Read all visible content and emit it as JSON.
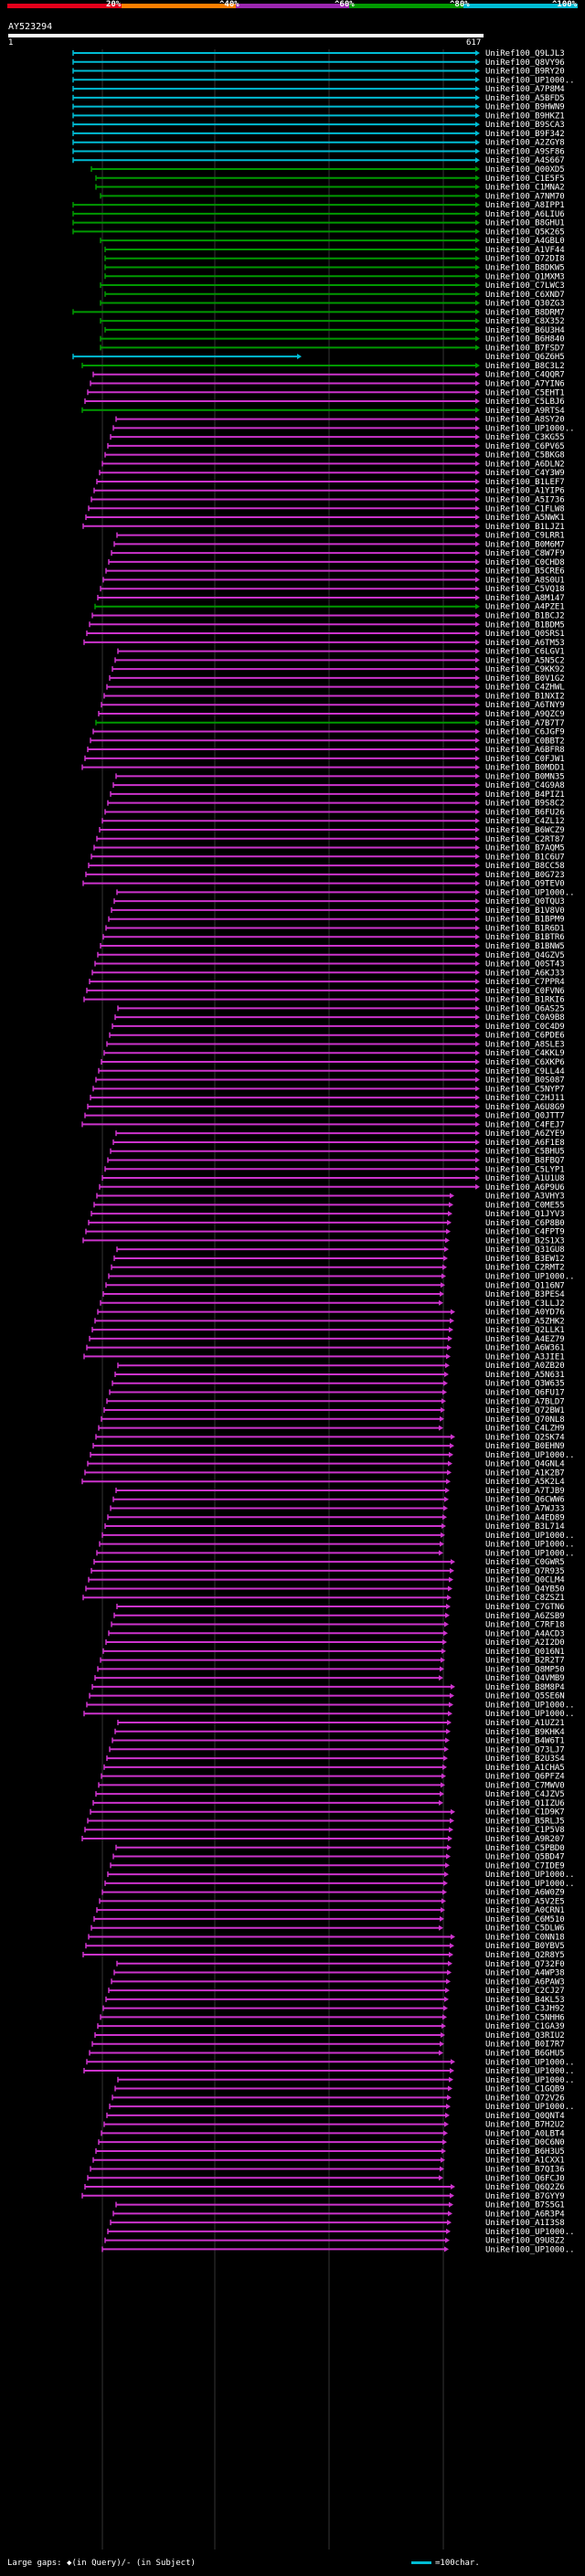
{
  "legend": {
    "scale": [
      {
        "label": "20%",
        "color": "#e4001b"
      },
      {
        "label": "^40%",
        "color": "#ff7f00"
      },
      {
        "label": "^60%",
        "color": "#9c27b0"
      },
      {
        "label": "^80%",
        "color": "#009900"
      },
      {
        "label": "^100%",
        "color": "#00bcd4"
      }
    ]
  },
  "query": {
    "id": "AY523294",
    "start": "1",
    "end": "617"
  },
  "colors": {
    "cyan": "#00bcd4",
    "green": "#009900",
    "magenta": "#cc33cc",
    "tick": "#aaaaaa"
  },
  "hit_labels": [
    "UniRef100_Q9LJL3",
    "UniRef100_Q8VY96",
    "UniRef100_B9RY20",
    "UniRef100_UP1000..",
    "UniRef100_A7P8M4",
    "UniRef100_A5BFD5",
    "UniRef100_B9HWN9",
    "UniRef100_B9HKZ1",
    "UniRef100_B9SCA3",
    "UniRef100_B9F342",
    "UniRef100_A2ZGY8",
    "UniRef100_A9SF86",
    "UniRef100_A4S667",
    "UniRef100_Q00XD5",
    "UniRef100_C1E5F5",
    "UniRef100_C1MNA2",
    "UniRef100_A7NM70",
    "UniRef100_A8IPP1",
    "UniRef100_A6LIU6",
    "UniRef100_B8GHU1",
    "UniRef100_Q5K265",
    "UniRef100_A4GBL0",
    "UniRef100_A1VF44",
    "UniRef100_Q72DI8",
    "UniRef100_B8DKW5",
    "UniRef100_Q1MXM3",
    "UniRef100_C7LWC3",
    "UniRef100_C6XND7",
    "UniRef100_Q30ZG3",
    "UniRef100_B8DRM7",
    "UniRef100_C8X352",
    "UniRef100_B6U3H4",
    "UniRef100_B6H840",
    "UniRef100_B7FSD7",
    "UniRef100_Q6Z6H5",
    "UniRef100_B8C3L2",
    "UniRef100_C4QQR7",
    "UniRef100_A7YIN6",
    "UniRef100_C5EHT1",
    "UniRef100_C5LBJ6",
    "UniRef100_A9RTS4",
    "UniRef100_A8SY20",
    "UniRef100_UP1000..",
    "UniRef100_C3KG55",
    "UniRef100_C6PV65",
    "UniRef100_C5BKG8",
    "UniRef100_A6DLN2",
    "UniRef100_C4Y3W9",
    "UniRef100_B1LEF7",
    "UniRef100_A1YIP6",
    "UniRef100_A5I736",
    "UniRef100_C1FLW8",
    "UniRef100_A5NWK1",
    "UniRef100_B1LJZ1",
    "UniRef100_C9LRR1",
    "UniRef100_B0M6M7",
    "UniRef100_C8W7F9",
    "UniRef100_C0CHD8",
    "UniRef100_B5CRE6",
    "UniRef100_A8S0U1",
    "UniRef100_C5VQ18",
    "UniRef100_A8M147",
    "UniRef100_A4PZE1",
    "UniRef100_B1BCJ2",
    "UniRef100_B1BDM5",
    "UniRef100_Q0SRS1",
    "UniRef100_A6TM53",
    "UniRef100_C6LGV1",
    "UniRef100_A5N5C2",
    "UniRef100_C9KK92",
    "UniRef100_B0V1G2",
    "UniRef100_C4ZHWL",
    "UniRef100_B1NXI2",
    "UniRef100_A6TNY9",
    "UniRef100_A9QZC9",
    "UniRef100_A7B7T7",
    "UniRef100_C6JGF9",
    "UniRef100_C0BBT2",
    "UniRef100_A6BFR8",
    "UniRef100_C0FJW1",
    "UniRef100_B0MDD1",
    "UniRef100_B0MN35",
    "UniRef100_C4G9A8",
    "UniRef100_B4PIZ1",
    "UniRef100_B9S8C2",
    "UniRef100_B6FU26",
    "UniRef100_C4ZL12",
    "UniRef100_B6WCZ9",
    "UniRef100_C2RT87",
    "UniRef100_B7AQM5",
    "UniRef100_B1C6U7",
    "UniRef100_B8CC58",
    "UniRef100_B0G723",
    "UniRef100_Q9TEV0",
    "UniRef100_UP1000..",
    "UniRef100_Q0TQU3",
    "UniRef100_B1V8V0",
    "UniRef100_B1BPM9",
    "UniRef100_B1R6D1",
    "UniRef100_B1BTR6",
    "UniRef100_B1BNW5",
    "UniRef100_Q4GZV5",
    "UniRef100_Q0ST43",
    "UniRef100_A6KJ33",
    "UniRef100_C7PPR4",
    "UniRef100_C0FVN6",
    "UniRef100_B1RKI6",
    "UniRef100_Q6AS25",
    "UniRef100_C0A9B8",
    "UniRef100_C0C4D9",
    "UniRef100_C6PDE6",
    "UniRef100_A8SLE3",
    "UniRef100_C4KKL9",
    "UniRef100_C6XKP6",
    "UniRef100_C9LL44",
    "UniRef100_B0S087",
    "UniRef100_C5NYP7",
    "UniRef100_C2HJ11",
    "UniRef100_A6U8G9",
    "UniRef100_Q0JTT7",
    "UniRef100_C4FEJ7",
    "UniRef100_A6ZYE9",
    "UniRef100_A6F1E8",
    "UniRef100_C5BHU5",
    "UniRef100_B8FBQ7",
    "UniRef100_C5LYP1",
    "UniRef100_A1U1U8",
    "UniRef100_A6P9U6",
    "UniRef100_A3VHY3",
    "UniRef100_C0ME55",
    "UniRef100_Q1JYV3",
    "UniRef100_C6P8B0",
    "UniRef100_C4FPT9",
    "UniRef100_B2S1X3",
    "UniRef100_Q31GU8",
    "UniRef100_B3EW12",
    "UniRef100_C2RMT2",
    "UniRef100_UP1000..",
    "UniRef100_Q116N7",
    "UniRef100_B3PES4",
    "UniRef100_C3LLJ2",
    "UniRef100_A0YD76",
    "UniRef100_A5ZHK2",
    "UniRef100_Q2LLK1",
    "UniRef100_A4EZ79",
    "UniRef100_A6W361",
    "UniRef100_A3JIE1",
    "UniRef100_A0ZB20",
    "UniRef100_A5N631",
    "UniRef100_Q3W635",
    "UniRef100_Q6FU17",
    "UniRef100_A7BLD7",
    "UniRef100_Q72BW1",
    "UniRef100_Q70NL8",
    "UniRef100_C4LZH9",
    "UniRef100_Q2SK74",
    "UniRef100_B0EHN9",
    "UniRef100_UP1000..",
    "UniRef100_Q4GNL4",
    "UniRef100_A1K2B7",
    "UniRef100_A5K2L4",
    "UniRef100_A7TJB9",
    "UniRef100_Q6CWW6",
    "UniRef100_A7WJ33",
    "UniRef100_A4ED89",
    "UniRef100_B3L714",
    "UniRef100_UP1000..",
    "UniRef100_UP1000..",
    "UniRef100_UP1000..",
    "UniRef100_C0GWR5",
    "UniRef100_Q7R935",
    "UniRef100_Q0CLM4",
    "UniRef100_Q4YB50",
    "UniRef100_C8ZSZ1",
    "UniRef100_C7GTN6",
    "UniRef100_A6ZSB9",
    "UniRef100_C7RF18",
    "UniRef100_A4ACD3",
    "UniRef100_A2I2D0",
    "UniRef100_Q016N1",
    "UniRef100_B2R2T7",
    "UniRef100_Q8MP50",
    "UniRef100_Q4VMB9",
    "UniRef100_B8M8P4",
    "UniRef100_Q5SE6N",
    "UniRef100_UP1000..",
    "UniRef100_UP1000..",
    "UniRef100_A1UZ21",
    "UniRef100_B9KHK4",
    "UniRef100_B4W6T1",
    "UniRef100_Q73LJ7",
    "UniRef100_B2U3S4",
    "UniRef100_A1CHA5",
    "UniRef100_Q6PFZ4",
    "UniRef100_C7MWV0",
    "UniRef100_C4JZV5",
    "UniRef100_Q1IZU6",
    "UniRef100_C1D9K7",
    "UniRef100_B5RLJ5",
    "UniRef100_C1P5V8",
    "UniRef100_A9R207",
    "UniRef100_C5PBD0",
    "UniRef100_Q5BD47",
    "UniRef100_C7IDE9",
    "UniRef100_UP1000..",
    "UniRef100_UP1000..",
    "UniRef100_A6W0Z9",
    "UniRef100_A5V2E5",
    "UniRef100_A0CRN1",
    "UniRef100_C6M510",
    "UniRef100_C5DLW6",
    "UniRef100_C0NN18",
    "UniRef100_B0YBV5",
    "UniRef100_Q2R8Y5",
    "UniRef100_Q732F0",
    "UniRef100_A4WP38",
    "UniRef100_A6PAW3",
    "UniRef100_C2CJ27",
    "UniRef100_B4KL53",
    "UniRef100_C3JH92",
    "UniRef100_C5NHH6",
    "UniRef100_C1GA39",
    "UniRef100_Q3RIU2",
    "UniRef100_B0I7R7",
    "UniRef100_B6GHU5",
    "UniRef100_UP1000..",
    "UniRef100_UP1000..",
    "UniRef100_UP1000..",
    "UniRef100_C1GQB9",
    "UniRef100_Q72V26",
    "UniRef100_UP1000..",
    "UniRef100_Q0QNT4",
    "UniRef100_B7H2U2",
    "UniRef100_A0LBT4",
    "UniRef100_D0C6N0",
    "UniRef100_B6H3U5",
    "UniRef100_A1CXX1",
    "UniRef100_B7QI36",
    "UniRef100_Q6FCJ0",
    "UniRef100_Q6Q2Z6",
    "UniRef100_B7GYY9",
    "UniRef100_B7S5G1",
    "UniRef100_A6R3P4",
    "UniRef100_A1I3S8",
    "UniRef100_UP1000..",
    "UniRef100_Q9U8Z2",
    "UniRef100_UP1000.."
  ],
  "footer": {
    "gaps_text": "Large gaps: ◆(in Query)/- (in Subject)",
    "scale_text": "=100char."
  }
}
